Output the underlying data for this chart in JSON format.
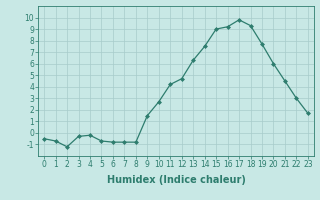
{
  "x": [
    0,
    1,
    2,
    3,
    4,
    5,
    6,
    7,
    8,
    9,
    10,
    11,
    12,
    13,
    14,
    15,
    16,
    17,
    18,
    19,
    20,
    21,
    22,
    23
  ],
  "y": [
    -0.5,
    -0.7,
    -1.2,
    -0.3,
    -0.2,
    -0.7,
    -0.8,
    -0.8,
    -0.8,
    1.5,
    2.7,
    4.2,
    4.7,
    6.3,
    7.5,
    9.0,
    9.2,
    9.8,
    9.3,
    7.7,
    6.0,
    4.5,
    3.0,
    1.7
  ],
  "line_color": "#2e7d6e",
  "marker": "D",
  "marker_size": 2.0,
  "bg_color": "#c8e8e5",
  "grid_color": "#a8cccb",
  "xlabel": "Humidex (Indice chaleur)",
  "ylim": [
    -2,
    11
  ],
  "xlim": [
    -0.5,
    23.5
  ],
  "yticks": [
    -1,
    0,
    1,
    2,
    3,
    4,
    5,
    6,
    7,
    8,
    9,
    10
  ],
  "xticks": [
    0,
    1,
    2,
    3,
    4,
    5,
    6,
    7,
    8,
    9,
    10,
    11,
    12,
    13,
    14,
    15,
    16,
    17,
    18,
    19,
    20,
    21,
    22,
    23
  ],
  "tick_fontsize": 5.5,
  "xlabel_fontsize": 7.0,
  "linewidth": 0.9
}
